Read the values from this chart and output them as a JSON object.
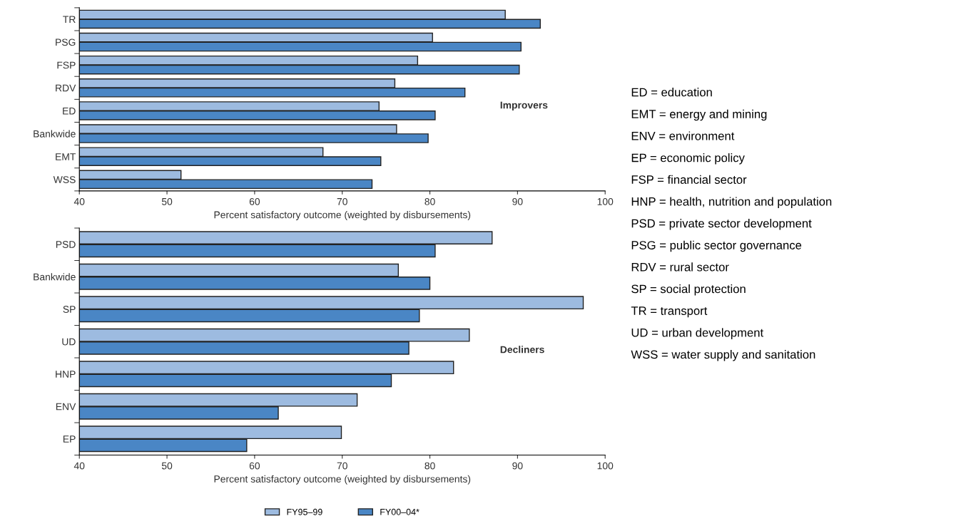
{
  "chart_data": [
    {
      "type": "bar",
      "orientation": "horizontal",
      "xlabel": "Percent satisfactory outcome (weighted by disbursements)",
      "categories": [
        "TR",
        "PSG",
        "FSP",
        "RDV",
        "ED",
        "Bankwide",
        "EMT",
        "WSS"
      ],
      "series": [
        {
          "color": "#9dbbe0",
          "values": [
            88.6,
            80.3,
            78.6,
            76.0,
            74.2,
            76.2,
            67.8,
            51.6
          ]
        },
        {
          "color": "#4a86c5",
          "values": [
            92.6,
            90.4,
            90.2,
            84.0,
            80.6,
            79.8,
            74.4,
            73.4
          ]
        }
      ],
      "xlim": [
        40,
        100
      ],
      "xticks": [
        40,
        50,
        60,
        70,
        80,
        90,
        100
      ],
      "grid": false,
      "annotations": [
        "Improvers"
      ]
    },
    {
      "type": "bar",
      "orientation": "horizontal",
      "xlabel": "Percent satisfactory outcome (weighted by disbursements)",
      "categories": [
        "PSD",
        "Bankwide",
        "SP",
        "UD",
        "HNP",
        "ENV",
        "EP"
      ],
      "series": [
        {
          "name": "FY95–99",
          "color": "#9dbbe0",
          "values": [
            87.1,
            76.4,
            97.5,
            84.5,
            82.7,
            71.7,
            69.9
          ]
        },
        {
          "name": "FY00–04*",
          "color": "#4a86c5",
          "values": [
            80.6,
            80.0,
            78.8,
            77.6,
            75.6,
            62.7,
            59.1
          ]
        }
      ],
      "xlim": [
        40,
        100
      ],
      "xticks": [
        40,
        50,
        60,
        70,
        80,
        90,
        100
      ],
      "grid": false,
      "legend": "bottom",
      "annotations": [
        "Decliners"
      ]
    },
    {
      "type": "other",
      "annotations": [
        "ED = education",
        "EMT = energy and mining",
        "ENV = environment",
        "EP = economic policy",
        "FSP = financial sector",
        "HNP = health, nutrition and population",
        "PSD = private sector development",
        "PSG = public sector governance",
        "RDV = rural sector",
        "SP = social protection",
        "TR = transport",
        "UD = urban development",
        "WSS = water supply and sanitation"
      ]
    }
  ]
}
